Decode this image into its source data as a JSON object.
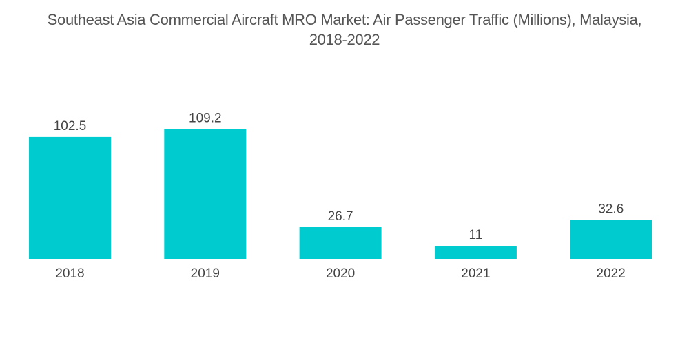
{
  "chart_data": {
    "type": "bar",
    "title": "Southeast Asia Commercial Aircraft MRO Market: Air Passenger Traffic (Millions), Malaysia, 2018-2022",
    "title_line1": "Southeast Asia Commercial Aircraft MRO Market: Air Passenger Traffic (Millions), Malaysia,",
    "title_line2": "2018-2022",
    "categories": [
      "2018",
      "2019",
      "2020",
      "2021",
      "2022"
    ],
    "values": [
      102.5,
      109.2,
      26.7,
      11,
      32.6
    ],
    "value_labels": [
      "102.5",
      "109.2",
      "26.7",
      "11",
      "32.6"
    ],
    "xlabel": "",
    "ylabel": "",
    "ylim": [
      0,
      115
    ],
    "grid": false,
    "legend": "none",
    "bar_color": "#00CCD0"
  }
}
